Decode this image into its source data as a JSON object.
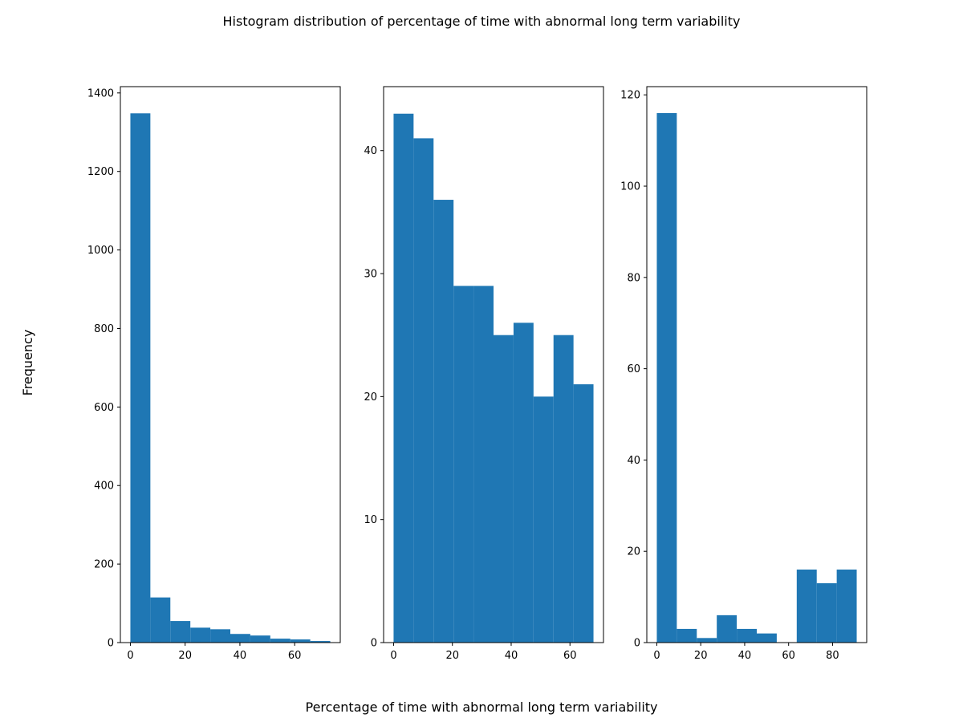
{
  "figure": {
    "title": "Histogram distribution of percentage of time with abnormal long term variability",
    "xlabel": "Percentage of time with abnormal long term variability",
    "ylabel": "Frequency"
  },
  "colors": {
    "bar": "#1f77b4",
    "axis": "#000000",
    "background": "#ffffff"
  },
  "chart_data": [
    {
      "type": "bar",
      "bin_edges": [
        0,
        7.3,
        14.6,
        21.9,
        29.2,
        36.5,
        43.8,
        51.1,
        58.4,
        65.7,
        73
      ],
      "values": [
        1348,
        115,
        55,
        38,
        34,
        22,
        18,
        10,
        8,
        4
      ],
      "xlim": [
        -3.65,
        76.65
      ],
      "ylim": [
        0,
        1416
      ],
      "xticks": [
        0,
        20,
        40,
        60
      ],
      "yticks": [
        0,
        200,
        400,
        600,
        800,
        1000,
        1200,
        1400
      ]
    },
    {
      "type": "bar",
      "bin_edges": [
        0,
        6.8,
        13.6,
        20.4,
        27.2,
        34,
        40.8,
        47.6,
        54.4,
        61.2,
        68
      ],
      "values": [
        43,
        41,
        36,
        29,
        29,
        25,
        26,
        20,
        25,
        21
      ],
      "xlim": [
        -3.4,
        71.4
      ],
      "ylim": [
        0,
        45.2
      ],
      "xticks": [
        0,
        20,
        40,
        60
      ],
      "yticks": [
        0,
        10,
        20,
        30,
        40
      ]
    },
    {
      "type": "bar",
      "bin_edges": [
        0,
        9.1,
        18.2,
        27.3,
        36.4,
        45.5,
        54.6,
        63.7,
        72.8,
        81.9,
        91
      ],
      "values": [
        116,
        3,
        1,
        6,
        3,
        2,
        0,
        16,
        13,
        16
      ],
      "xlim": [
        -4.55,
        95.55
      ],
      "ylim": [
        0,
        121.8
      ],
      "xticks": [
        0,
        20,
        40,
        60,
        80
      ],
      "yticks": [
        0,
        20,
        40,
        60,
        80,
        100,
        120
      ]
    }
  ]
}
